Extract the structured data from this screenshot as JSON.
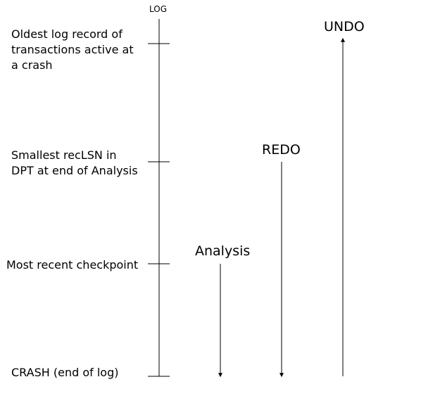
{
  "log_title": "LOG",
  "log_labels": {
    "oldest": "Oldest log record of transactions active at a crash",
    "smallest_reclsn": "Smallest recLSN in DPT at end of Analysis",
    "checkpoint": "Most recent checkpoint",
    "crash": "CRASH (end of log)"
  },
  "phases": {
    "undo": "UNDO",
    "redo": "REDO",
    "analysis": "Analysis"
  },
  "colors": {
    "line": "#000000",
    "background": "#ffffff"
  }
}
